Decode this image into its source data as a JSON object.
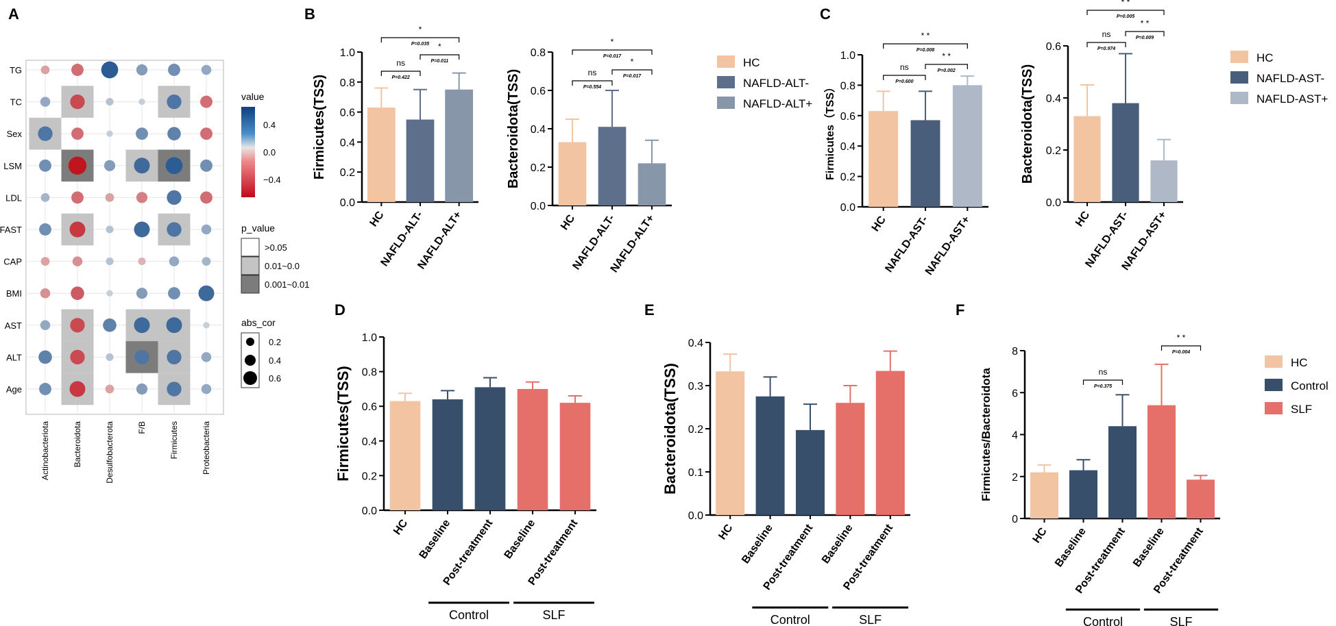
{
  "colors": {
    "hc": "#F2C4A2",
    "altneg": "#5D6F8A",
    "altpos": "#8796A8",
    "astneg": "#485E7A",
    "astpos": "#AEB8C6",
    "control": "#384F6C",
    "slf": "#E5706A",
    "pos_strong": "#1B4F8C",
    "neg_strong": "#C0151F"
  },
  "chart_data": [
    {
      "panel": "A",
      "type": "heatmap",
      "rows": [
        "TG",
        "TC",
        "Sex",
        "LSM",
        "LDL",
        "FAST",
        "CAP",
        "BMI",
        "AST",
        "ALT",
        "Age"
      ],
      "columns": [
        "Actinobacteriota",
        "Bacteroidota",
        "Desulfobacterota",
        "F/B",
        "Firmicutes",
        "Proteobacteria"
      ],
      "value_matrix": [
        [
          -0.2,
          -0.35,
          0.55,
          0.3,
          0.35,
          0.25
        ],
        [
          0.25,
          -0.45,
          0.15,
          0.1,
          0.45,
          -0.35
        ],
        [
          0.45,
          -0.35,
          0.1,
          0.35,
          0.4,
          -0.35
        ],
        [
          0.35,
          -0.6,
          0.3,
          0.5,
          0.55,
          0.35
        ],
        [
          0.2,
          -0.35,
          -0.2,
          -0.3,
          0.45,
          -0.35
        ],
        [
          0.35,
          -0.5,
          0.15,
          0.5,
          0.45,
          0.25
        ],
        [
          -0.2,
          -0.25,
          0.15,
          -0.15,
          0.25,
          0.2
        ],
        [
          -0.25,
          -0.4,
          0.1,
          0.3,
          0.35,
          0.5
        ],
        [
          0.25,
          -0.45,
          0.4,
          0.5,
          0.5,
          0.1
        ],
        [
          0.4,
          -0.45,
          0.15,
          0.45,
          0.45,
          0.25
        ],
        [
          0.35,
          -0.5,
          -0.2,
          0.3,
          0.45,
          0.25
        ]
      ],
      "p_matrix": [
        [
          0,
          0,
          0,
          0,
          0,
          0
        ],
        [
          0,
          1,
          0,
          0,
          1,
          0
        ],
        [
          1,
          0,
          0,
          0,
          0,
          0
        ],
        [
          0,
          2,
          0,
          1,
          2,
          0
        ],
        [
          0,
          0,
          0,
          0,
          0,
          0
        ],
        [
          0,
          1,
          0,
          0,
          1,
          0
        ],
        [
          0,
          0,
          0,
          0,
          0,
          0
        ],
        [
          0,
          0,
          0,
          0,
          0,
          0
        ],
        [
          0,
          1,
          0,
          1,
          1,
          0
        ],
        [
          0,
          1,
          0,
          2,
          1,
          0
        ],
        [
          0,
          1,
          0,
          0,
          1,
          0
        ]
      ],
      "legend_value_title": "value",
      "legend_value_ticks": [
        "0.4",
        "0.0",
        "−0.4"
      ],
      "legend_p_title": "p_value",
      "legend_p_levels": [
        ">0.05",
        "0.01~0.0",
        "0.001~0.01"
      ],
      "legend_abs_title": "abs_cor",
      "legend_abs_levels": [
        "0.2",
        "0.4",
        "0.6"
      ]
    },
    {
      "panel": "B",
      "type": "bar",
      "ylabel": "Firmicutes(TSS)",
      "ylim": [
        0,
        1.0
      ],
      "yticks": [
        "0.0",
        "0.2",
        "0.4",
        "0.6",
        "0.8",
        "1.0"
      ],
      "categories": [
        "HC",
        "NAFLD-ALT-",
        "NAFLD-ALT+"
      ],
      "values": [
        0.63,
        0.55,
        0.75
      ],
      "errors": [
        0.13,
        0.2,
        0.11
      ],
      "annotations": [
        {
          "stars": "*",
          "p": "P=0.035"
        },
        {
          "stars": "*",
          "p": "P=0.011"
        },
        {
          "stars": "ns",
          "p": "P=0.422"
        }
      ]
    },
    {
      "panel": "B2",
      "type": "bar",
      "ylabel": "Bacteroidota(TSS)",
      "ylim": [
        0,
        0.8
      ],
      "yticks": [
        "0.0",
        "0.2",
        "0.4",
        "0.6",
        "0.8"
      ],
      "categories": [
        "HC",
        "NAFLD-ALT-",
        "NAFLD-ALT+"
      ],
      "values": [
        0.33,
        0.41,
        0.22
      ],
      "errors": [
        0.12,
        0.19,
        0.12
      ],
      "annotations": [
        {
          "stars": "*",
          "p": "P=0.017"
        },
        {
          "stars": "*",
          "p": "P=0.017"
        },
        {
          "stars": "ns",
          "p": "P=0.554"
        }
      ],
      "legend": [
        "HC",
        "NAFLD-ALT-",
        "NAFLD-ALT+"
      ]
    },
    {
      "panel": "C",
      "type": "bar",
      "ylabel": "Firmicutes（TSS）",
      "ylim": [
        0,
        1.0
      ],
      "yticks": [
        "0.0",
        "0.2",
        "0.4",
        "0.6",
        "0.8",
        "1.0"
      ],
      "categories": [
        "HC",
        "NAFLD-AST-",
        "NAFLD-AST+"
      ],
      "values": [
        0.63,
        0.57,
        0.8
      ],
      "errors": [
        0.13,
        0.19,
        0.06
      ],
      "annotations": [
        {
          "stars": "* *",
          "p": "P=0.008"
        },
        {
          "stars": "* *",
          "p": "P=0.002"
        },
        {
          "stars": "ns",
          "p": "P=0.600"
        }
      ]
    },
    {
      "panel": "C2",
      "type": "bar",
      "ylabel": "Bacteroidota(TSS)",
      "ylim": [
        0,
        0.6
      ],
      "yticks": [
        "0.0",
        "0.2",
        "0.4",
        "0.6"
      ],
      "categories": [
        "HC",
        "NAFLD-AST-",
        "NAFLD-AST+"
      ],
      "values": [
        0.33,
        0.38,
        0.16
      ],
      "errors": [
        0.12,
        0.19,
        0.08
      ],
      "annotations": [
        {
          "stars": "* *",
          "p": "P=0.005"
        },
        {
          "stars": "* *",
          "p": "P=0.009"
        },
        {
          "stars": "ns",
          "p": "P=0.974"
        }
      ],
      "legend": [
        "HC",
        "NAFLD-AST-",
        "NAFLD-AST+"
      ]
    },
    {
      "panel": "D",
      "type": "bar",
      "ylabel": "Firmicutes(TSS)",
      "ylim": [
        0,
        1.0
      ],
      "yticks": [
        "0.0",
        "0.2",
        "0.4",
        "0.6",
        "0.8",
        "1.0"
      ],
      "categories": [
        "HC",
        "Baseline",
        "Post-treatment",
        "Baseline",
        "Post-treatment"
      ],
      "values": [
        0.63,
        0.64,
        0.71,
        0.7,
        0.62
      ],
      "errors": [
        0.045,
        0.05,
        0.055,
        0.04,
        0.04
      ],
      "groups": [
        "Control",
        "SLF"
      ]
    },
    {
      "panel": "E",
      "type": "bar",
      "ylabel": "Bacteroidota(TSS)",
      "ylim": [
        0,
        0.4
      ],
      "yticks": [
        "0.0",
        "0.1",
        "0.2",
        "0.3",
        "0.4"
      ],
      "categories": [
        "HC",
        "Baseline",
        "Post-treatment",
        "Baseline",
        "Post-treatment"
      ],
      "values": [
        0.333,
        0.275,
        0.197,
        0.26,
        0.334
      ],
      "errors": [
        0.04,
        0.045,
        0.06,
        0.04,
        0.046
      ],
      "groups": [
        "Control",
        "SLF"
      ]
    },
    {
      "panel": "F",
      "type": "bar",
      "ylabel": "Firmicutes/Bacteroidota",
      "ylim": [
        0,
        8
      ],
      "yticks": [
        "0",
        "2",
        "4",
        "6",
        "8"
      ],
      "categories": [
        "HC",
        "Baseline",
        "Post-treatment",
        "Baseline",
        "Post-treatment"
      ],
      "values": [
        2.2,
        2.3,
        4.4,
        5.4,
        1.85
      ],
      "errors": [
        0.35,
        0.5,
        1.5,
        1.95,
        0.2
      ],
      "annotations": [
        {
          "stars": "ns",
          "p": "P=0.375"
        },
        {
          "stars": "* *",
          "p": "P=0.004"
        }
      ],
      "groups": [
        "Control",
        "SLF"
      ],
      "legend": [
        "HC",
        "Control",
        "SLF"
      ]
    }
  ],
  "panel_letters": [
    "A",
    "B",
    "C",
    "D",
    "E",
    "F"
  ]
}
